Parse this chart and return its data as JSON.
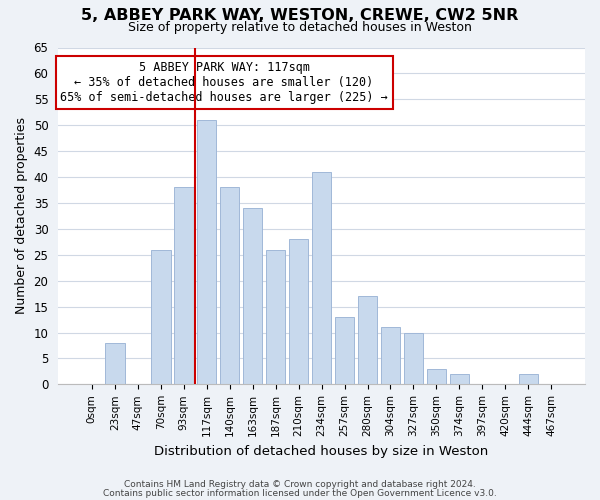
{
  "title": "5, ABBEY PARK WAY, WESTON, CREWE, CW2 5NR",
  "subtitle": "Size of property relative to detached houses in Weston",
  "xlabel": "Distribution of detached houses by size in Weston",
  "ylabel": "Number of detached properties",
  "bar_labels": [
    "0sqm",
    "23sqm",
    "47sqm",
    "70sqm",
    "93sqm",
    "117sqm",
    "140sqm",
    "163sqm",
    "187sqm",
    "210sqm",
    "234sqm",
    "257sqm",
    "280sqm",
    "304sqm",
    "327sqm",
    "350sqm",
    "374sqm",
    "397sqm",
    "420sqm",
    "444sqm",
    "467sqm"
  ],
  "bar_values": [
    0,
    8,
    0,
    26,
    38,
    51,
    38,
    34,
    26,
    28,
    41,
    13,
    17,
    11,
    10,
    3,
    2,
    0,
    0,
    2,
    0
  ],
  "bar_color": "#c8d9ed",
  "bar_edge_color": "#a0b8d8",
  "vline_index": 5,
  "vline_color": "#cc0000",
  "ylim": [
    0,
    65
  ],
  "yticks": [
    0,
    5,
    10,
    15,
    20,
    25,
    30,
    35,
    40,
    45,
    50,
    55,
    60,
    65
  ],
  "annotation_title": "5 ABBEY PARK WAY: 117sqm",
  "annotation_line1": "← 35% of detached houses are smaller (120)",
  "annotation_line2": "65% of semi-detached houses are larger (225) →",
  "annotation_box_color": "#ffffff",
  "annotation_box_edge": "#cc0000",
  "footer_line1": "Contains HM Land Registry data © Crown copyright and database right 2024.",
  "footer_line2": "Contains public sector information licensed under the Open Government Licence v3.0.",
  "bg_color": "#eef2f7",
  "plot_bg_color": "#ffffff",
  "grid_color": "#d0d8e4"
}
